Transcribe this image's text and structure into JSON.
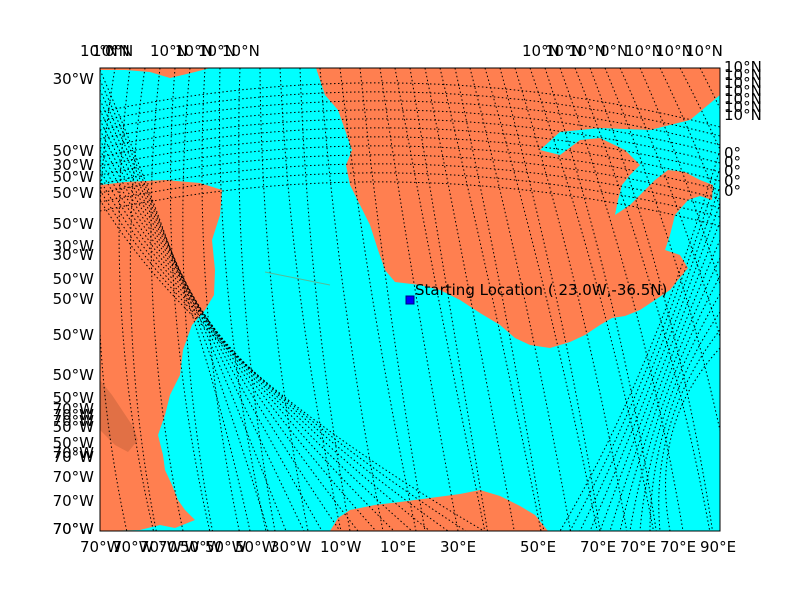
{
  "map": {
    "projection": "oblique map with dense dotted graticule (meridians and parallels)",
    "colors": {
      "ocean": "#00ffff",
      "land": "#ff7f50",
      "graticule": "#000000",
      "frame": "#000000",
      "marker_fill": "#0000ff",
      "marker_edge": "#000080"
    },
    "marker": {
      "label": "Starting Location ( 23.0W,-36.5N)",
      "lon": -23.0,
      "lat": -36.5
    },
    "tick_labels": {
      "top_left": [
        "10°N",
        "10°N",
        "0°N",
        "10°N",
        "10°N",
        "10°N",
        "10°N"
      ],
      "top_right": [
        "10°N",
        "10°N",
        "10°N",
        "0°N",
        "10°N",
        "10°N",
        "10°N"
      ],
      "left": [
        "30°W",
        "50°W",
        "30°W",
        "50°W",
        "50°W",
        "50°W",
        "30°W",
        "30°W",
        "50°W",
        "50°W",
        "50°W",
        "50°W",
        "50°W",
        "70°W",
        "70°W",
        "70°W",
        "50°W",
        "50°W",
        "70°W",
        "70°W",
        "70°W",
        "70°W",
        "70°W",
        "70°W"
      ],
      "right": [
        "10°N",
        "10°N",
        "10°N",
        "10°N",
        "10°N",
        "10°N",
        "10°N",
        "0°",
        "0°",
        "0°",
        "0°",
        "0°"
      ],
      "bottom": [
        "70°W",
        "70°W",
        "70°W",
        "70°W",
        "50°W",
        "50°W",
        "50°W",
        "30°W",
        "10°W",
        "10°E",
        "30°E",
        "50°E",
        "70°E",
        "70°E",
        "70°E",
        "90°E"
      ]
    }
  }
}
